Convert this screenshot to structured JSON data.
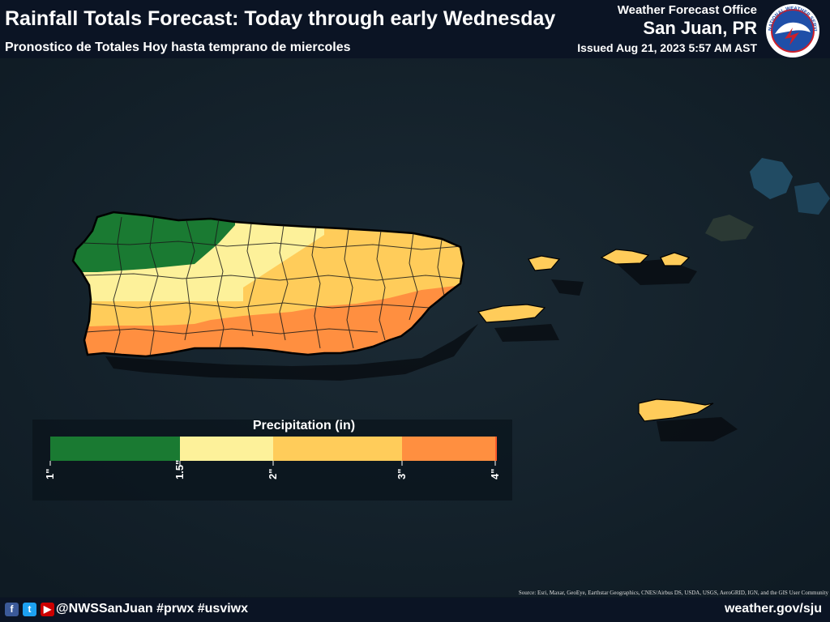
{
  "header": {
    "title": "Rainfall Totals Forecast: Today through early Wednesday",
    "subtitle": "Pronostico de Totales Hoy hasta temprano de miercoles",
    "office_label": "Weather Forecast Office",
    "office_name": "San Juan, PR",
    "issued": "Issued Aug 21, 2023 5:57 AM AST",
    "logo_text": "NATIONAL WEATHER SERVICE"
  },
  "legend": {
    "title": "Precipitation (in)",
    "ticks": [
      "1\"",
      "1.5\"",
      "2\"",
      "3\"",
      "4\""
    ],
    "bins": [
      {
        "range": "1-1.5",
        "color": "#1a7a32"
      },
      {
        "range": "1.5-2",
        "color": "#fdf19a"
      },
      {
        "range": "2-3",
        "color": "#ffcc5a"
      },
      {
        "range": "3-4",
        "color": "#ff8f40"
      },
      {
        "range": "4+",
        "color": "#ff5a2a"
      }
    ]
  },
  "map": {
    "regions": [
      "Puerto Rico",
      "Culebra",
      "Vieques",
      "Saint Thomas",
      "Saint John",
      "Saint Croix"
    ]
  },
  "source": "Source: Esri, Maxar, GeoEye, Earthstar Geographics, CNES/Airbus DS, USDA, USGS, AeroGRID, IGN, and the GIS User Community",
  "footer": {
    "social_icons": [
      "facebook-icon",
      "twitter-icon",
      "youtube-icon"
    ],
    "handle": "@NWSSanJuan #prwx #usviwx",
    "site": "weather.gov/sju"
  }
}
